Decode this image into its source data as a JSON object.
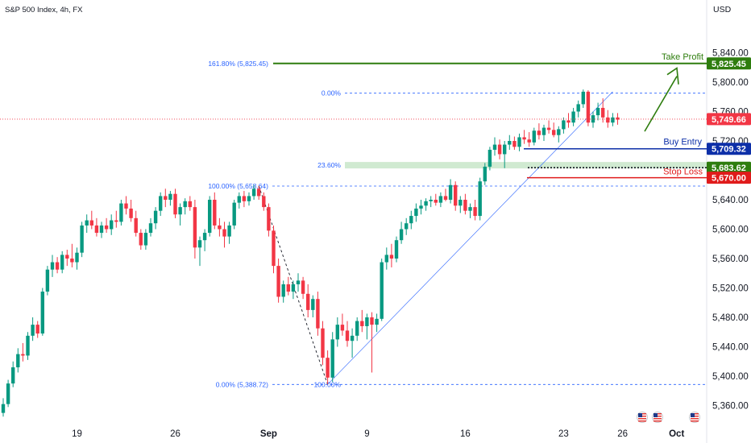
{
  "header": {
    "title": "S&P 500 Index, 4h, FX",
    "currency": "USD"
  },
  "chart_data": {
    "type": "candlestick",
    "ylim": [
      5340,
      5860
    ],
    "y_ticks": [
      "5,840.00",
      "5,800.00",
      "5,760.00",
      "5,720.00",
      "5,680.00",
      "5,640.00",
      "5,600.00",
      "5,560.00",
      "5,520.00",
      "5,480.00",
      "5,440.00",
      "5,400.00",
      "5,360.00"
    ],
    "y_tick_values": [
      5840,
      5800,
      5760,
      5720,
      5680,
      5640,
      5600,
      5560,
      5520,
      5480,
      5440,
      5400,
      5360
    ],
    "x_ticks": [
      {
        "label": "19",
        "bar": 15
      },
      {
        "label": "26",
        "bar": 35
      },
      {
        "label": "Sep",
        "bar": 54
      },
      {
        "label": "9",
        "bar": 74
      },
      {
        "label": "16",
        "bar": 94
      },
      {
        "label": "23",
        "bar": 114
      },
      {
        "label": "26",
        "bar": 126
      },
      {
        "label": "Oct",
        "bar": 137
      }
    ],
    "candles": [
      [
        5350,
        5370,
        5345,
        5362
      ],
      [
        5362,
        5395,
        5358,
        5390
      ],
      [
        5390,
        5420,
        5385,
        5412
      ],
      [
        5412,
        5438,
        5405,
        5430
      ],
      [
        5430,
        5445,
        5420,
        5428
      ],
      [
        5428,
        5460,
        5422,
        5455
      ],
      [
        5455,
        5480,
        5448,
        5470
      ],
      [
        5470,
        5475,
        5452,
        5458
      ],
      [
        5458,
        5520,
        5455,
        5515
      ],
      [
        5515,
        5550,
        5510,
        5545
      ],
      [
        5545,
        5565,
        5535,
        5555
      ],
      [
        5555,
        5562,
        5540,
        5545
      ],
      [
        5545,
        5570,
        5540,
        5565
      ],
      [
        5565,
        5572,
        5550,
        5560
      ],
      [
        5560,
        5580,
        5548,
        5555
      ],
      [
        5555,
        5575,
        5545,
        5568
      ],
      [
        5568,
        5610,
        5562,
        5605
      ],
      [
        5605,
        5620,
        5595,
        5612
      ],
      [
        5612,
        5625,
        5600,
        5605
      ],
      [
        5605,
        5615,
        5590,
        5595
      ],
      [
        5595,
        5610,
        5588,
        5605
      ],
      [
        5605,
        5615,
        5595,
        5600
      ],
      [
        5600,
        5620,
        5592,
        5612
      ],
      [
        5612,
        5625,
        5602,
        5610
      ],
      [
        5610,
        5640,
        5605,
        5635
      ],
      [
        5635,
        5645,
        5620,
        5628
      ],
      [
        5628,
        5640,
        5610,
        5615
      ],
      [
        5615,
        5625,
        5590,
        5595
      ],
      [
        5595,
        5600,
        5572,
        5578
      ],
      [
        5578,
        5600,
        5572,
        5595
      ],
      [
        5595,
        5615,
        5590,
        5608
      ],
      [
        5608,
        5630,
        5600,
        5625
      ],
      [
        5625,
        5650,
        5618,
        5645
      ],
      [
        5645,
        5655,
        5630,
        5640
      ],
      [
        5640,
        5652,
        5632,
        5648
      ],
      [
        5648,
        5655,
        5615,
        5620
      ],
      [
        5620,
        5635,
        5605,
        5630
      ],
      [
        5630,
        5642,
        5620,
        5638
      ],
      [
        5638,
        5645,
        5625,
        5630
      ],
      [
        5630,
        5640,
        5560,
        5575
      ],
      [
        5575,
        5590,
        5550,
        5585
      ],
      [
        5585,
        5600,
        5570,
        5595
      ],
      [
        5595,
        5645,
        5590,
        5640
      ],
      [
        5640,
        5650,
        5600,
        5605
      ],
      [
        5605,
        5615,
        5590,
        5600
      ],
      [
        5600,
        5610,
        5575,
        5590
      ],
      [
        5590,
        5610,
        5580,
        5605
      ],
      [
        5605,
        5640,
        5600,
        5636
      ],
      [
        5636,
        5650,
        5628,
        5645
      ],
      [
        5645,
        5652,
        5630,
        5638
      ],
      [
        5638,
        5650,
        5632,
        5645
      ],
      [
        5645,
        5660,
        5640,
        5655
      ],
      [
        5655,
        5659,
        5640,
        5645
      ],
      [
        5645,
        5650,
        5625,
        5630
      ],
      [
        5630,
        5635,
        5590,
        5598
      ],
      [
        5598,
        5605,
        5540,
        5550
      ],
      [
        5550,
        5560,
        5500,
        5508
      ],
      [
        5508,
        5530,
        5500,
        5525
      ],
      [
        5525,
        5535,
        5510,
        5515
      ],
      [
        5515,
        5530,
        5505,
        5525
      ],
      [
        5525,
        5540,
        5515,
        5530
      ],
      [
        5530,
        5535,
        5505,
        5512
      ],
      [
        5512,
        5525,
        5480,
        5490
      ],
      [
        5490,
        5510,
        5480,
        5505
      ],
      [
        5505,
        5515,
        5455,
        5465
      ],
      [
        5465,
        5475,
        5415,
        5425
      ],
      [
        5425,
        5435,
        5389,
        5398
      ],
      [
        5398,
        5460,
        5392,
        5450
      ],
      [
        5450,
        5480,
        5440,
        5470
      ],
      [
        5470,
        5485,
        5455,
        5462
      ],
      [
        5462,
        5475,
        5440,
        5448
      ],
      [
        5448,
        5465,
        5425,
        5455
      ],
      [
        5455,
        5480,
        5448,
        5475
      ],
      [
        5475,
        5490,
        5460,
        5468
      ],
      [
        5468,
        5485,
        5450,
        5480
      ],
      [
        5480,
        5487,
        5405,
        5470
      ],
      [
        5470,
        5485,
        5460,
        5478
      ],
      [
        5478,
        5560,
        5475,
        5555
      ],
      [
        5555,
        5575,
        5545,
        5565
      ],
      [
        5565,
        5580,
        5548,
        5560
      ],
      [
        5560,
        5590,
        5555,
        5585
      ],
      [
        5585,
        5610,
        5580,
        5600
      ],
      [
        5600,
        5615,
        5592,
        5608
      ],
      [
        5608,
        5625,
        5600,
        5618
      ],
      [
        5618,
        5635,
        5610,
        5628
      ],
      [
        5628,
        5640,
        5620,
        5632
      ],
      [
        5632,
        5642,
        5625,
        5638
      ],
      [
        5638,
        5645,
        5630,
        5640
      ],
      [
        5640,
        5648,
        5632,
        5636
      ],
      [
        5636,
        5650,
        5630,
        5645
      ],
      [
        5645,
        5655,
        5638,
        5640
      ],
      [
        5640,
        5668,
        5635,
        5660
      ],
      [
        5660,
        5665,
        5625,
        5632
      ],
      [
        5632,
        5645,
        5622,
        5640
      ],
      [
        5640,
        5648,
        5620,
        5625
      ],
      [
        5625,
        5635,
        5615,
        5630
      ],
      [
        5630,
        5640,
        5612,
        5618
      ],
      [
        5618,
        5670,
        5612,
        5665
      ],
      [
        5665,
        5690,
        5660,
        5685
      ],
      [
        5685,
        5712,
        5680,
        5708
      ],
      [
        5708,
        5725,
        5700,
        5715
      ],
      [
        5715,
        5722,
        5695,
        5702
      ],
      [
        5702,
        5720,
        5683,
        5715
      ],
      [
        5715,
        5728,
        5708,
        5720
      ],
      [
        5720,
        5726,
        5708,
        5712
      ],
      [
        5712,
        5730,
        5706,
        5725
      ],
      [
        5725,
        5735,
        5716,
        5722
      ],
      [
        5722,
        5732,
        5712,
        5718
      ],
      [
        5718,
        5738,
        5714,
        5734
      ],
      [
        5734,
        5744,
        5722,
        5728
      ],
      [
        5728,
        5742,
        5720,
        5738
      ],
      [
        5738,
        5748,
        5730,
        5735
      ],
      [
        5735,
        5745,
        5725,
        5728
      ],
      [
        5728,
        5740,
        5718,
        5736
      ],
      [
        5736,
        5752,
        5730,
        5748
      ],
      [
        5748,
        5758,
        5738,
        5745
      ],
      [
        5745,
        5765,
        5740,
        5760
      ],
      [
        5760,
        5775,
        5752,
        5770
      ],
      [
        5770,
        5790,
        5765,
        5787
      ],
      [
        5787,
        5789,
        5740,
        5745
      ],
      [
        5745,
        5760,
        5738,
        5755
      ],
      [
        5755,
        5772,
        5748,
        5765
      ],
      [
        5765,
        5778,
        5745,
        5752
      ],
      [
        5752,
        5762,
        5738,
        5745
      ],
      [
        5745,
        5758,
        5740,
        5752
      ],
      [
        5752,
        5758,
        5742,
        5749
      ]
    ],
    "fib_labels": [
      {
        "text": "161.80% (5,825.45)",
        "price": 5825.45
      },
      {
        "text": "0.00%",
        "price": 5785
      },
      {
        "text": "23.60%",
        "price": 5687
      },
      {
        "text": "100.00% (5,658.64)",
        "price": 5658.64
      },
      {
        "text": "0.00% (5,388.72)",
        "price": 5388.72
      },
      {
        "text": "100.00%",
        "price": 5388.72
      }
    ],
    "levels": [
      {
        "label": "Take Profit",
        "price": 5825.45,
        "price_label": "5,825.45",
        "color": "#2e7d0e"
      },
      {
        "label": "Buy Entry",
        "price": 5709.32,
        "price_label": "5,709.32",
        "color": "#0d2fa8"
      },
      {
        "label": "",
        "price": 5683.62,
        "price_label": "5,683.62",
        "color": "#2e7d0e"
      },
      {
        "label": "Stop Loss",
        "price": 5670.0,
        "price_label": "5,670.00",
        "color": "#e01b1b"
      }
    ],
    "last_price": {
      "price": 5749.66,
      "label": "5,749.66",
      "color": "#f23645"
    },
    "colors": {
      "up": "#089981",
      "down": "#f23645",
      "fib": "#2962ff",
      "zone": "#c8e6c9"
    }
  }
}
